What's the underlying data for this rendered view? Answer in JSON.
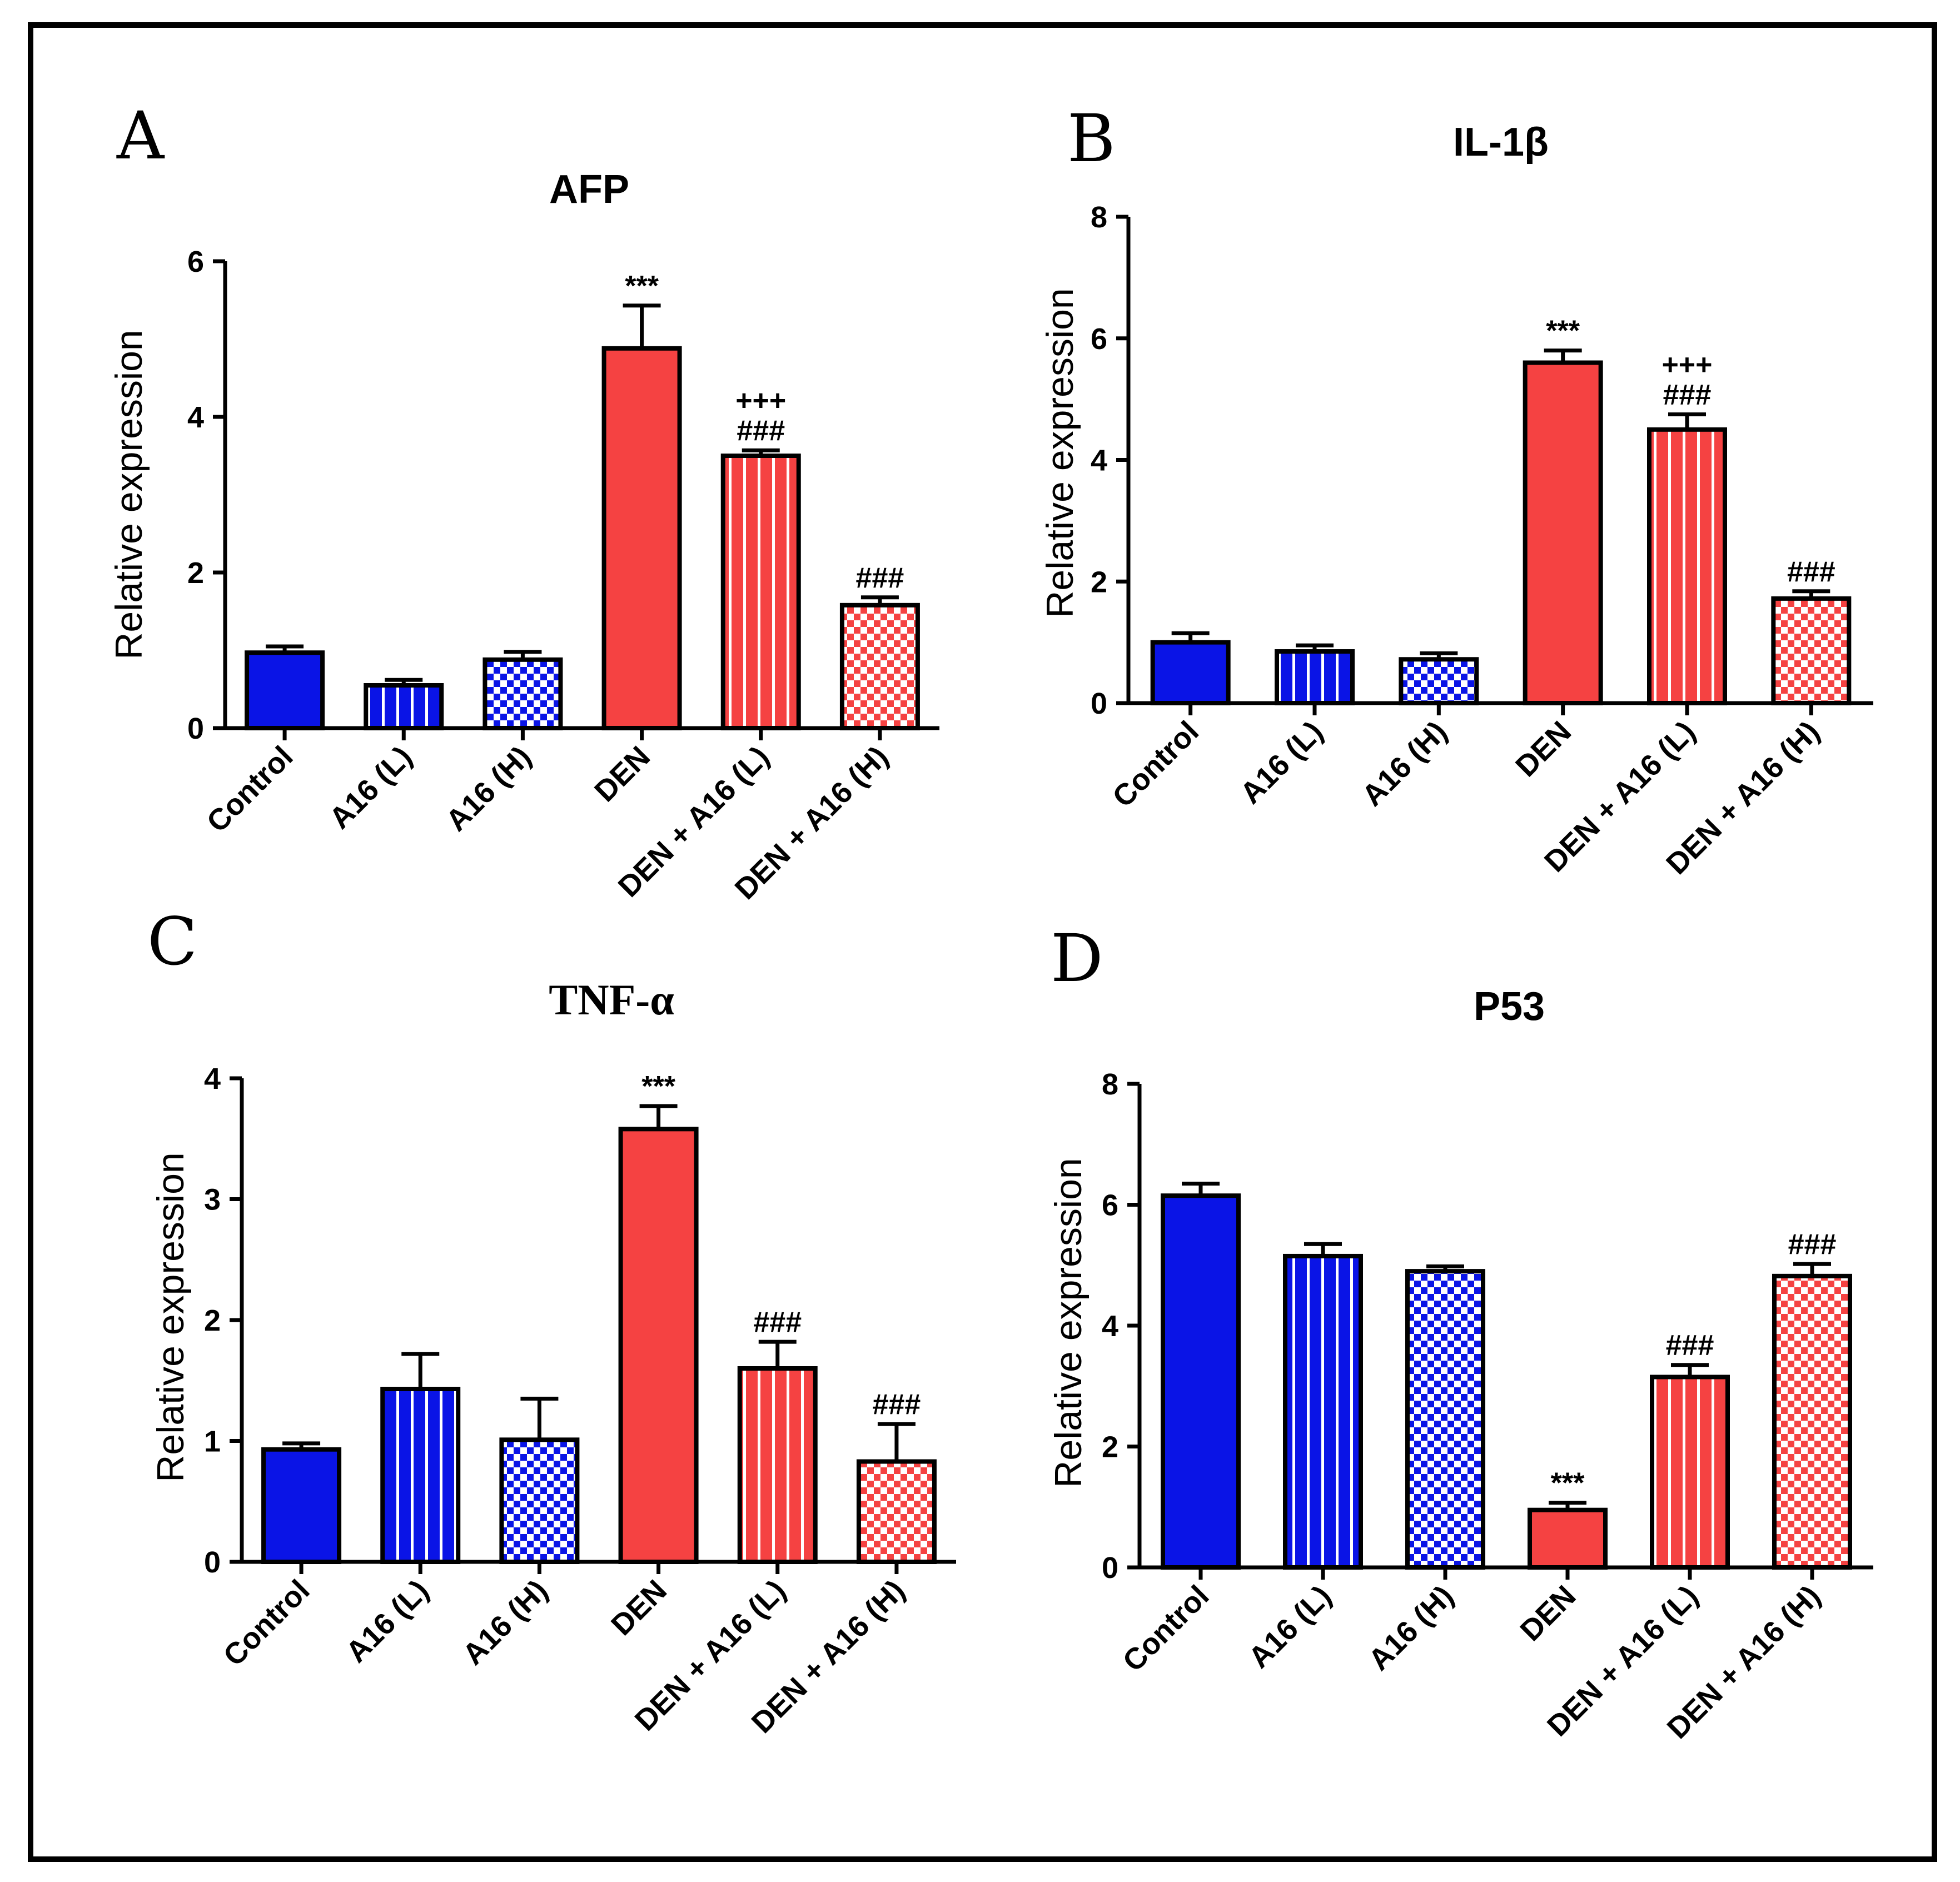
{
  "colors": {
    "blue": "#0a14e6",
    "red": "#f54242",
    "white": "#ffffff"
  },
  "chart_data": [
    {
      "panel": "A",
      "type": "bar",
      "title": "AFP",
      "title_style": "sans",
      "ylabel": "Relative expression",
      "xlabel": "",
      "ylim": [
        0,
        6
      ],
      "yticks": [
        0,
        2,
        4,
        6
      ],
      "categories": [
        "Control",
        "A16 (L)",
        "A16 (H)",
        "DEN",
        "DEN + A16 (L)",
        "DEN + A16 (H)"
      ],
      "fills": [
        "solid-blue",
        "stripe-blue",
        "check-blue",
        "solid-red",
        "stripe-red",
        "check-red"
      ],
      "values": [
        0.97,
        0.55,
        0.88,
        4.88,
        3.5,
        1.58
      ],
      "errors": [
        0.08,
        0.07,
        0.1,
        0.55,
        0.07,
        0.1
      ],
      "annotations": [
        [],
        [],
        [],
        [
          "***"
        ],
        [
          "+++",
          "###"
        ],
        [
          "###"
        ]
      ]
    },
    {
      "panel": "B",
      "type": "bar",
      "title": "IL-1β",
      "title_style": "sans",
      "ylabel": "Relative expression",
      "xlabel": "",
      "ylim": [
        0,
        8
      ],
      "yticks": [
        0,
        2,
        4,
        6,
        8
      ],
      "categories": [
        "Control",
        "A16 (L)",
        "A16 (H)",
        "DEN",
        "DEN + A16 (L)",
        "DEN + A16 (H)"
      ],
      "fills": [
        "solid-blue",
        "stripe-blue",
        "check-blue",
        "solid-red",
        "stripe-red",
        "check-red"
      ],
      "values": [
        1.0,
        0.85,
        0.72,
        5.6,
        4.5,
        1.72
      ],
      "errors": [
        0.15,
        0.1,
        0.1,
        0.2,
        0.25,
        0.12
      ],
      "annotations": [
        [],
        [],
        [],
        [
          "***"
        ],
        [
          "+++",
          "###"
        ],
        [
          "###"
        ]
      ]
    },
    {
      "panel": "C",
      "type": "bar",
      "title": "TNF-α",
      "title_style": "serif",
      "ylabel": "Relative expression",
      "xlabel": "",
      "ylim": [
        0,
        4
      ],
      "yticks": [
        0,
        1,
        2,
        3,
        4
      ],
      "categories": [
        "Control",
        "A16 (L)",
        "A16 (H)",
        "DEN",
        "DEN + A16 (L)",
        "DEN + A16 (H)"
      ],
      "fills": [
        "solid-blue",
        "stripe-blue",
        "check-blue",
        "solid-red",
        "stripe-red",
        "check-red"
      ],
      "values": [
        0.93,
        1.43,
        1.01,
        3.58,
        1.6,
        0.83
      ],
      "errors": [
        0.05,
        0.29,
        0.34,
        0.19,
        0.22,
        0.31
      ],
      "annotations": [
        [],
        [],
        [],
        [
          "***"
        ],
        [
          "###"
        ],
        [
          "###"
        ]
      ]
    },
    {
      "panel": "D",
      "type": "bar",
      "title": "P53",
      "title_style": "sans",
      "ylabel": "Relative expression",
      "xlabel": "",
      "ylim": [
        0,
        8
      ],
      "yticks": [
        0,
        2,
        4,
        6,
        8
      ],
      "categories": [
        "Control",
        "A16 (L)",
        "A16 (H)",
        "DEN",
        "DEN + A16 (L)",
        "DEN + A16 (H)"
      ],
      "fills": [
        "solid-blue",
        "stripe-blue",
        "check-blue",
        "solid-red",
        "stripe-red",
        "check-red"
      ],
      "values": [
        6.15,
        5.15,
        4.9,
        0.95,
        3.15,
        4.82
      ],
      "errors": [
        0.2,
        0.2,
        0.08,
        0.12,
        0.2,
        0.2
      ],
      "annotations": [
        [],
        [],
        [],
        [
          "***"
        ],
        [
          "###"
        ],
        [
          "###"
        ]
      ]
    }
  ]
}
